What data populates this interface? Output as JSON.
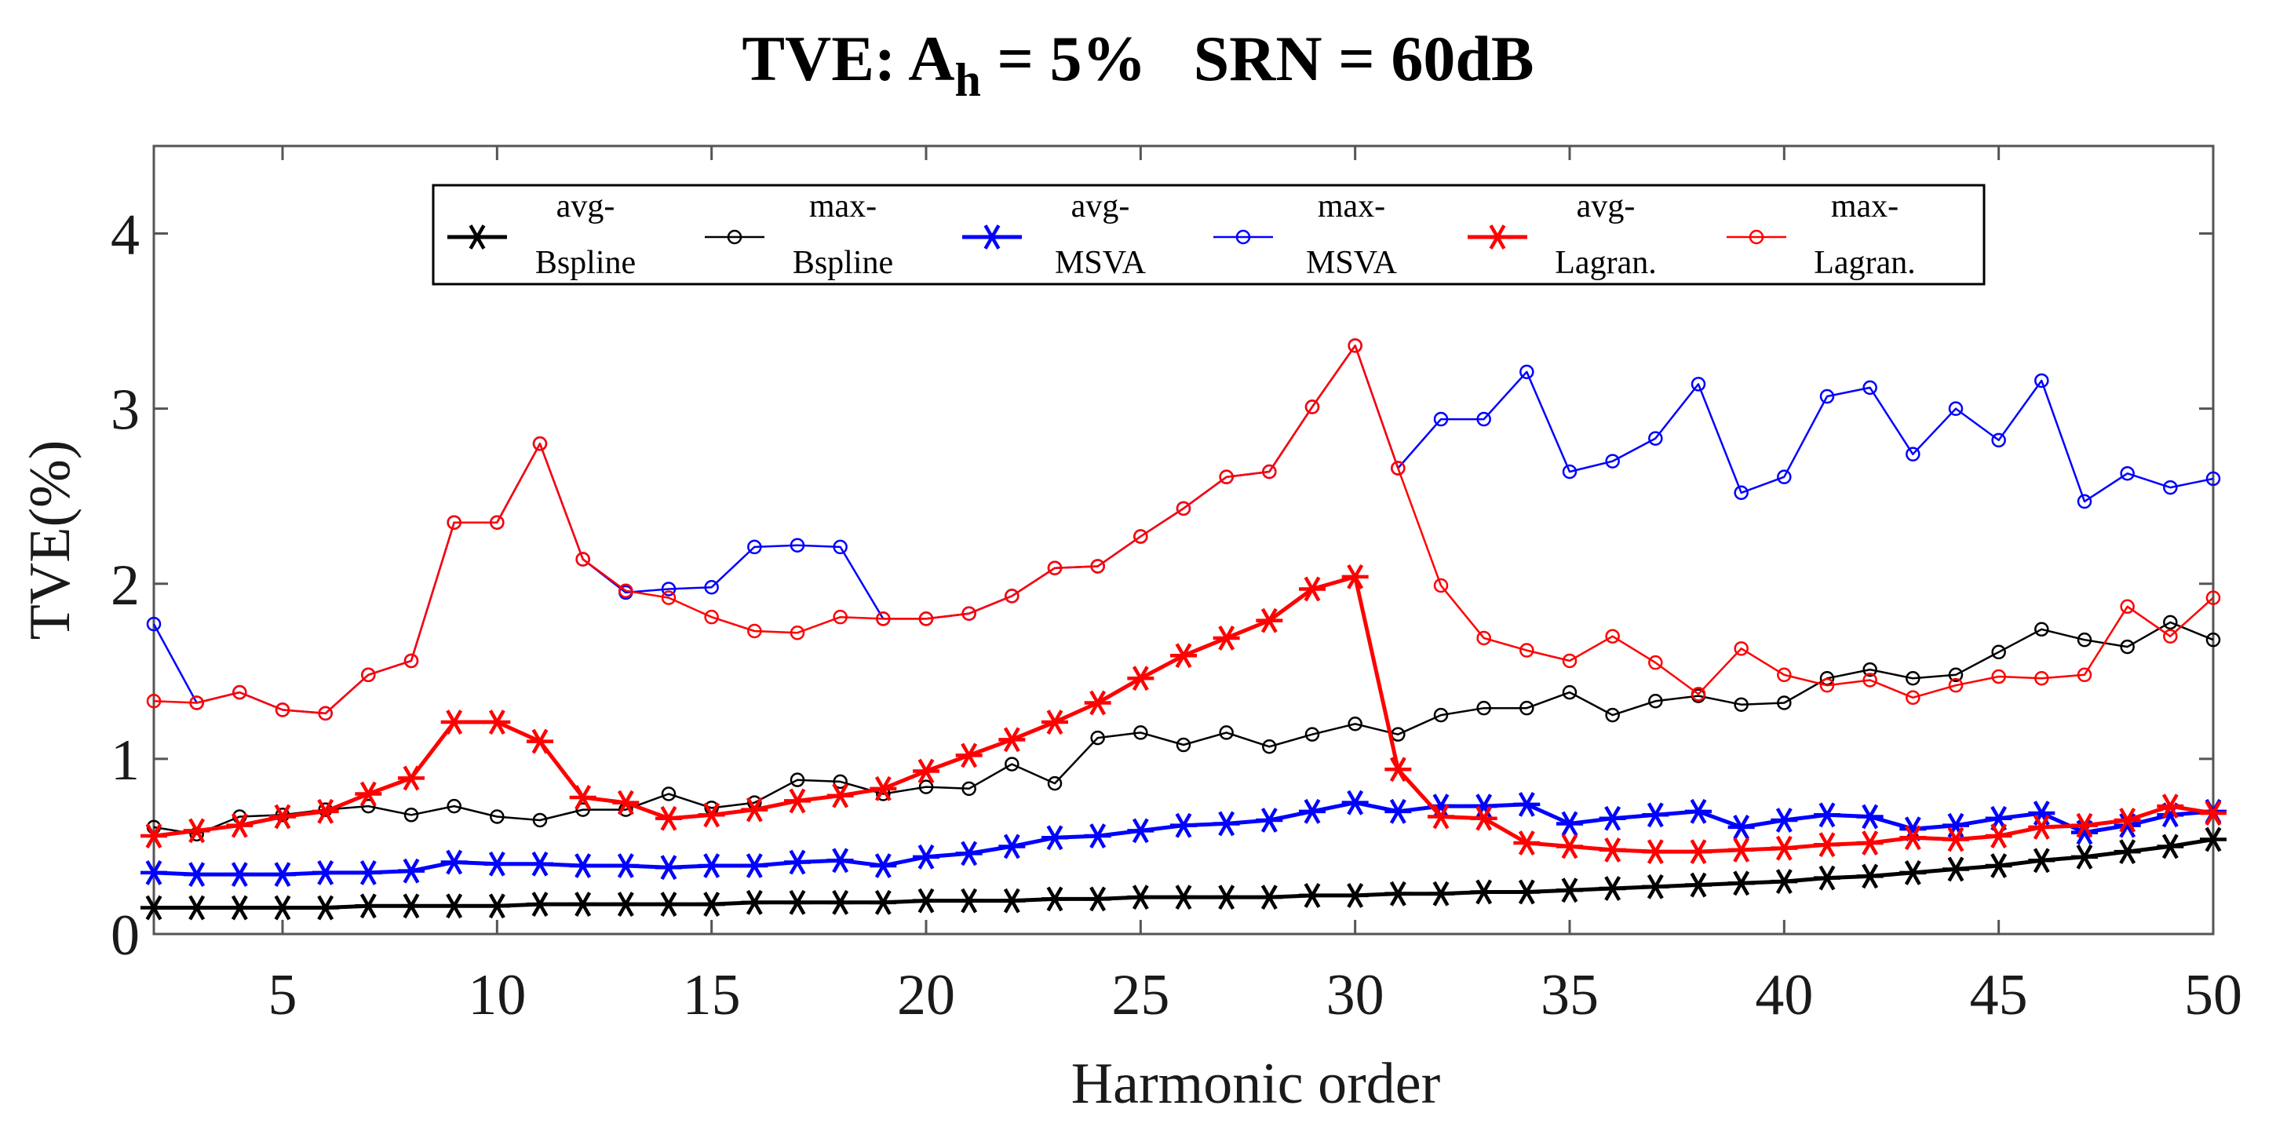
{
  "chart_data": {
    "type": "line",
    "title": {
      "prefix": "TVE: A",
      "subscript": "h",
      "suffix": " = 5%",
      "srn": "SRN = 60dB"
    },
    "xlabel": "Harmonic order",
    "ylabel": "TVE(%)",
    "xlim": [
      2,
      50
    ],
    "ylim": [
      0,
      4.5
    ],
    "xticks": [
      5,
      10,
      15,
      20,
      25,
      30,
      35,
      40,
      45,
      50
    ],
    "yticks": [
      0,
      1,
      2,
      3,
      4
    ],
    "x": [
      2,
      3,
      4,
      5,
      6,
      7,
      8,
      9,
      10,
      11,
      12,
      13,
      14,
      15,
      16,
      17,
      18,
      19,
      20,
      21,
      22,
      23,
      24,
      25,
      26,
      27,
      28,
      29,
      30,
      31,
      32,
      33,
      34,
      35,
      36,
      37,
      38,
      39,
      40,
      41,
      42,
      43,
      44,
      45,
      46,
      47,
      48,
      49,
      50
    ],
    "series": [
      {
        "name": "avg-Bspline",
        "legend_top": "avg-",
        "legend_bottom": "Bspline",
        "color": "#000000",
        "marker": "star",
        "width": 5,
        "values": [
          0.15,
          0.15,
          0.15,
          0.15,
          0.15,
          0.16,
          0.16,
          0.16,
          0.16,
          0.17,
          0.17,
          0.17,
          0.17,
          0.17,
          0.18,
          0.18,
          0.18,
          0.18,
          0.19,
          0.19,
          0.19,
          0.2,
          0.2,
          0.21,
          0.21,
          0.21,
          0.21,
          0.22,
          0.22,
          0.23,
          0.23,
          0.24,
          0.24,
          0.25,
          0.26,
          0.27,
          0.28,
          0.29,
          0.3,
          0.32,
          0.33,
          0.35,
          0.37,
          0.39,
          0.42,
          0.44,
          0.47,
          0.5,
          0.54
        ]
      },
      {
        "name": "max-Bspline",
        "legend_top": "max-",
        "legend_bottom": "Bspline",
        "color": "#000000",
        "marker": "circle",
        "width": 2.5,
        "values": [
          0.61,
          0.57,
          0.67,
          0.68,
          0.71,
          0.73,
          0.68,
          0.73,
          0.67,
          0.65,
          0.71,
          0.71,
          0.8,
          0.72,
          0.75,
          0.88,
          0.87,
          0.8,
          0.84,
          0.83,
          0.97,
          0.86,
          1.12,
          1.15,
          1.08,
          1.15,
          1.07,
          1.14,
          1.2,
          1.14,
          1.25,
          1.29,
          1.29,
          1.38,
          1.25,
          1.33,
          1.36,
          1.31,
          1.32,
          1.46,
          1.51,
          1.46,
          1.48,
          1.61,
          1.74,
          1.68,
          1.64,
          1.78,
          1.68
        ]
      },
      {
        "name": "avg-MSVA",
        "legend_top": "avg-",
        "legend_bottom": "MSVA",
        "color": "#0000ff",
        "marker": "star",
        "width": 5,
        "values": [
          0.35,
          0.34,
          0.34,
          0.34,
          0.35,
          0.35,
          0.36,
          0.41,
          0.4,
          0.4,
          0.39,
          0.39,
          0.38,
          0.39,
          0.39,
          0.41,
          0.42,
          0.39,
          0.44,
          0.46,
          0.5,
          0.55,
          0.56,
          0.59,
          0.62,
          0.63,
          0.65,
          0.7,
          0.75,
          0.7,
          0.73,
          0.73,
          0.74,
          0.63,
          0.66,
          0.68,
          0.7,
          0.61,
          0.65,
          0.68,
          0.67,
          0.6,
          0.62,
          0.66,
          0.69,
          0.58,
          0.62,
          0.68,
          0.7
        ]
      },
      {
        "name": "max-MSVA",
        "legend_top": "max-",
        "legend_bottom": "MSVA",
        "color": "#0000ff",
        "marker": "circle",
        "width": 2.5,
        "values": [
          1.77,
          1.32,
          1.38,
          1.28,
          1.26,
          1.48,
          1.56,
          2.35,
          2.35,
          2.8,
          2.14,
          1.95,
          1.97,
          1.98,
          2.21,
          2.22,
          2.21,
          1.8,
          1.8,
          1.83,
          1.93,
          2.09,
          2.1,
          2.27,
          2.43,
          2.61,
          2.64,
          3.01,
          3.36,
          2.66,
          2.94,
          2.94,
          3.21,
          2.64,
          2.7,
          2.83,
          3.14,
          2.52,
          2.61,
          3.07,
          3.12,
          2.74,
          3.0,
          2.82,
          3.16,
          2.47,
          2.63,
          2.55,
          2.6
        ]
      },
      {
        "name": "avg-Lagran.",
        "legend_top": "avg-",
        "legend_bottom": "Lagran.",
        "color": "#ff0000",
        "marker": "star",
        "width": 5,
        "values": [
          0.56,
          0.59,
          0.62,
          0.67,
          0.7,
          0.8,
          0.89,
          1.21,
          1.21,
          1.1,
          0.78,
          0.75,
          0.66,
          0.68,
          0.71,
          0.76,
          0.79,
          0.83,
          0.93,
          1.02,
          1.11,
          1.21,
          1.32,
          1.46,
          1.59,
          1.69,
          1.79,
          1.97,
          2.04,
          0.94,
          0.67,
          0.66,
          0.52,
          0.5,
          0.48,
          0.47,
          0.47,
          0.48,
          0.49,
          0.51,
          0.52,
          0.55,
          0.54,
          0.56,
          0.61,
          0.62,
          0.65,
          0.73,
          0.69
        ]
      },
      {
        "name": "max-Lagran.",
        "legend_top": "max-",
        "legend_bottom": "Lagran.",
        "color": "#ff0000",
        "marker": "circle",
        "width": 2.5,
        "values": [
          1.33,
          1.32,
          1.38,
          1.28,
          1.26,
          1.48,
          1.56,
          2.35,
          2.35,
          2.8,
          2.14,
          1.96,
          1.92,
          1.81,
          1.73,
          1.72,
          1.81,
          1.8,
          1.8,
          1.83,
          1.93,
          2.09,
          2.1,
          2.27,
          2.43,
          2.61,
          2.64,
          3.01,
          3.36,
          2.66,
          1.99,
          1.69,
          1.62,
          1.56,
          1.7,
          1.55,
          1.37,
          1.63,
          1.48,
          1.42,
          1.45,
          1.35,
          1.42,
          1.47,
          1.46,
          1.48,
          1.87,
          1.7,
          1.92
        ]
      }
    ],
    "legend_position": "top"
  }
}
